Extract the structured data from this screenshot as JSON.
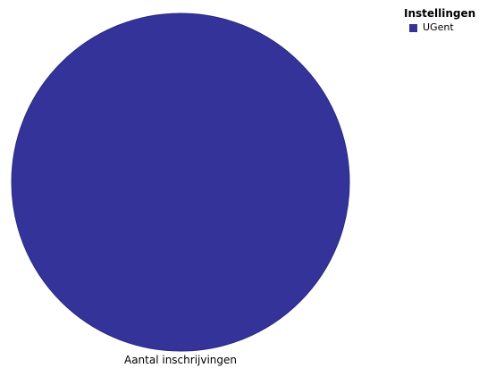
{
  "chart_data": {
    "type": "pie",
    "title": "",
    "xlabel": "Aantal inschrijvingen",
    "legend": {
      "title": "Instellingen",
      "position": "top-right"
    },
    "slices": [
      {
        "label": "UGent",
        "value": 100,
        "color": "#333399"
      }
    ]
  }
}
